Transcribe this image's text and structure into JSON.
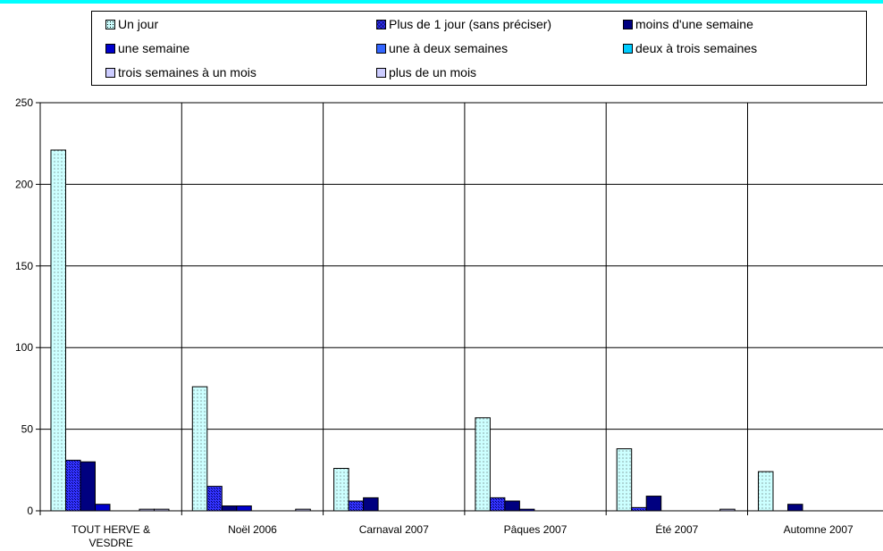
{
  "chart_data": {
    "type": "bar",
    "title": "",
    "xlabel": "",
    "ylabel": "",
    "ylim": [
      0,
      250
    ],
    "yticks": [
      0,
      50,
      100,
      150,
      200,
      250
    ],
    "categories": [
      "TOUT HERVE & VESDRE",
      "Noël 2006",
      "Carnaval 2007",
      "Pâques 2007",
      "Été 2007",
      "Automne 2007"
    ],
    "category_lines": [
      [
        "TOUT HERVE &",
        "VESDRE"
      ],
      [
        "Noël 2006"
      ],
      [
        "Carnaval 2007"
      ],
      [
        "Pâques 2007"
      ],
      [
        "Été 2007"
      ],
      [
        "Automne 2007"
      ]
    ],
    "series": [
      {
        "name": "Un jour",
        "color": "#CCFFFF",
        "pattern": "dots",
        "values": [
          221,
          76,
          26,
          57,
          38,
          24
        ]
      },
      {
        "name": "Plus de 1 jour (sans préciser)",
        "color": "#3333FF",
        "pattern": "checker",
        "values": [
          31,
          15,
          6,
          8,
          2,
          0
        ]
      },
      {
        "name": "moins d'une semaine",
        "color": "#000080",
        "pattern": "solid",
        "values": [
          30,
          3,
          8,
          6,
          9,
          4
        ]
      },
      {
        "name": "une semaine",
        "color": "#0000CC",
        "pattern": "solid",
        "values": [
          4,
          3,
          0,
          1,
          0,
          0
        ]
      },
      {
        "name": "une à deux semaines",
        "color": "#3366FF",
        "pattern": "solid",
        "values": [
          0,
          0,
          0,
          0,
          0,
          0
        ]
      },
      {
        "name": "deux à trois semaines",
        "color": "#00CCFF",
        "pattern": "solid",
        "values": [
          0,
          0,
          0,
          0,
          0,
          0
        ]
      },
      {
        "name": "trois semaines à un mois",
        "color": "#CCCCFF",
        "pattern": "solid",
        "values": [
          1,
          0,
          0,
          0,
          0,
          0
        ]
      },
      {
        "name": "plus de un mois",
        "color": "#CCCCFF",
        "pattern": "solid",
        "values": [
          1,
          1,
          0,
          0,
          1,
          0
        ]
      }
    ],
    "grid": true,
    "legend_position": "top",
    "top_bar_color": "#00FFFF"
  }
}
